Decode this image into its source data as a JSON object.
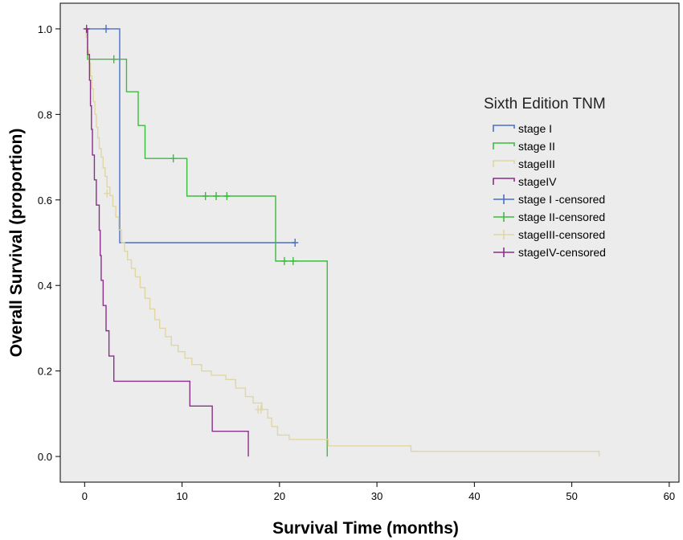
{
  "chart_data": {
    "type": "line",
    "subtype": "kaplan-meier step",
    "xlabel": "Survival Time (months)",
    "ylabel": "Overall Survival (proportion)",
    "xlim": [
      -2.5,
      61
    ],
    "ylim": [
      -0.06,
      1.06
    ],
    "xticks": [
      0,
      10,
      20,
      30,
      40,
      50,
      60
    ],
    "yticks": [
      0.0,
      0.2,
      0.4,
      0.6,
      0.8,
      1.0
    ],
    "ytick_labels": [
      "0.0",
      "0.2",
      "0.4",
      "0.6",
      "0.8",
      "1.0"
    ],
    "grid": false,
    "background": "#ececec",
    "legend": {
      "title": "Sixth Edition TNM",
      "placement": "right",
      "entries": [
        {
          "label": "stage I",
          "color": "#4a6fc7",
          "kind": "line"
        },
        {
          "label": "stage II",
          "color": "#3dbb3d",
          "kind": "line"
        },
        {
          "label": "stageIII",
          "color": "#e0d6a2",
          "kind": "line"
        },
        {
          "label": "stageIV",
          "color": "#8a2f8a",
          "kind": "line"
        },
        {
          "label": "stage I -censored",
          "color": "#4a6fc7",
          "kind": "censor"
        },
        {
          "label": "stage II-censored",
          "color": "#3dbb3d",
          "kind": "censor"
        },
        {
          "label": "stageIII-censored",
          "color": "#e0d6a2",
          "kind": "censor"
        },
        {
          "label": "stageIV-censored",
          "color": "#8a2f8a",
          "kind": "censor"
        }
      ]
    },
    "series": [
      {
        "name": "stage I",
        "color": "#4a6fc7",
        "steps": [
          [
            0,
            1.0
          ],
          [
            3.6,
            0.5
          ],
          [
            21.6,
            0.5
          ]
        ],
        "censored": [
          [
            2.2,
            1.0
          ],
          [
            21.6,
            0.5
          ]
        ]
      },
      {
        "name": "stage II",
        "color": "#3dbb3d",
        "steps": [
          [
            0,
            1.0
          ],
          [
            0.3,
            0.929
          ],
          [
            4.3,
            0.853
          ],
          [
            5.5,
            0.774
          ],
          [
            6.2,
            0.697
          ],
          [
            10.5,
            0.609
          ],
          [
            19.6,
            0.457
          ],
          [
            24.9,
            0.0
          ]
        ],
        "censored": [
          [
            3.0,
            0.929
          ],
          [
            9.1,
            0.697
          ],
          [
            12.4,
            0.609
          ],
          [
            13.5,
            0.609
          ],
          [
            14.6,
            0.609
          ],
          [
            20.5,
            0.457
          ],
          [
            21.4,
            0.457
          ]
        ]
      },
      {
        "name": "stageIII",
        "color": "#e0d6a2",
        "steps": [
          [
            0,
            1.0
          ],
          [
            0.15,
            0.98
          ],
          [
            0.3,
            0.95
          ],
          [
            0.45,
            0.92
          ],
          [
            0.6,
            0.89
          ],
          [
            0.75,
            0.86
          ],
          [
            0.9,
            0.83
          ],
          [
            1.05,
            0.8
          ],
          [
            1.2,
            0.77
          ],
          [
            1.35,
            0.745
          ],
          [
            1.5,
            0.72
          ],
          [
            1.7,
            0.7
          ],
          [
            1.9,
            0.675
          ],
          [
            2.1,
            0.655
          ],
          [
            2.3,
            0.63
          ],
          [
            2.6,
            0.61
          ],
          [
            2.9,
            0.585
          ],
          [
            3.2,
            0.56
          ],
          [
            3.5,
            0.53
          ],
          [
            3.8,
            0.5
          ],
          [
            4.1,
            0.48
          ],
          [
            4.4,
            0.46
          ],
          [
            4.8,
            0.44
          ],
          [
            5.2,
            0.42
          ],
          [
            5.7,
            0.395
          ],
          [
            6.2,
            0.37
          ],
          [
            6.7,
            0.345
          ],
          [
            7.2,
            0.32
          ],
          [
            7.7,
            0.3
          ],
          [
            8.3,
            0.28
          ],
          [
            8.9,
            0.26
          ],
          [
            9.6,
            0.245
          ],
          [
            10.3,
            0.23
          ],
          [
            11.0,
            0.215
          ],
          [
            12.0,
            0.2
          ],
          [
            13.0,
            0.19
          ],
          [
            14.5,
            0.18
          ],
          [
            15.5,
            0.16
          ],
          [
            16.5,
            0.14
          ],
          [
            17.3,
            0.125
          ],
          [
            18.2,
            0.11
          ],
          [
            18.8,
            0.09
          ],
          [
            19.2,
            0.07
          ],
          [
            19.8,
            0.05
          ],
          [
            21.0,
            0.04
          ],
          [
            25.0,
            0.025
          ],
          [
            33.5,
            0.012
          ],
          [
            52.8,
            0.0
          ]
        ],
        "censored": [
          [
            2.3,
            0.615
          ],
          [
            17.8,
            0.11
          ],
          [
            18.1,
            0.11
          ]
        ]
      },
      {
        "name": "stageIV",
        "color": "#8a2f8a",
        "steps": [
          [
            0,
            1.0
          ],
          [
            0.3,
            0.94
          ],
          [
            0.5,
            0.88
          ],
          [
            0.6,
            0.82
          ],
          [
            0.7,
            0.765
          ],
          [
            0.8,
            0.705
          ],
          [
            1.0,
            0.647
          ],
          [
            1.2,
            0.588
          ],
          [
            1.5,
            0.529
          ],
          [
            1.6,
            0.47
          ],
          [
            1.7,
            0.412
          ],
          [
            1.9,
            0.353
          ],
          [
            2.2,
            0.294
          ],
          [
            2.5,
            0.235
          ],
          [
            3.0,
            0.176
          ],
          [
            10.8,
            0.118
          ],
          [
            13.1,
            0.059
          ],
          [
            16.8,
            0.0
          ]
        ],
        "censored": [
          [
            0.2,
            1.0
          ]
        ]
      }
    ]
  }
}
